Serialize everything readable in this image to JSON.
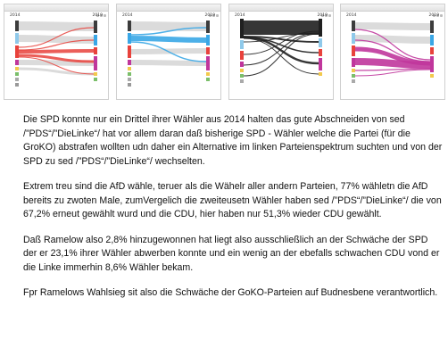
{
  "charts": [
    {
      "left_year": "2014",
      "right_year": "2019",
      "highlight": "#e8423c"
    },
    {
      "left_year": "2014",
      "right_year": "2019",
      "highlight": "#3aa7e6"
    },
    {
      "left_year": "2014",
      "right_year": "2019",
      "highlight": "#202020"
    },
    {
      "left_year": "2014",
      "right_year": "2019",
      "highlight": "#c0369c"
    }
  ],
  "paragraphs": [
    "Die SPD konnte nur ein Drittel ihrer Wähler aus 2014 halten das gute Abschneiden von sed /”PDS“/”DieLinke“/ hat vor allem daran daß bisherige SPD - Wähler welche die Partei (für die GroKO) abstrafen wollten udn daher ein Alternative im linken Parteienspektrum suchten und von der SPD zu sed /”PDS“/”DieLinke“/ wechselten.",
    "Extrem treu sind die AfD wähle, teruer als die Wähelr aller andern Parteien, 77% wähletn die AfD bereits zu zwoten Male, zumVergelich die zweiteusetn Wähler haben sed /”PDS“/”DieLinke“/ die von 67,2% erneut gewählt wurd und die CDU, hier haben nur 51,3% wieder CDU gewählt.",
    "Daß Ramelow also 2,8% hinzugewonnen hat liegt also ausschließlich an der Schwäche der SPD der er 23,1% ihrer Wähler abwerben konnte und ein wenig an der ebefalls schwachen CDU vond er die Linke immerhin 8,6% Wähler bekam.",
    "Fpr Ramelows Wahlsieg sit also die Schwäche der GoKO-Parteien auf Budnesbene verantwortlich."
  ]
}
